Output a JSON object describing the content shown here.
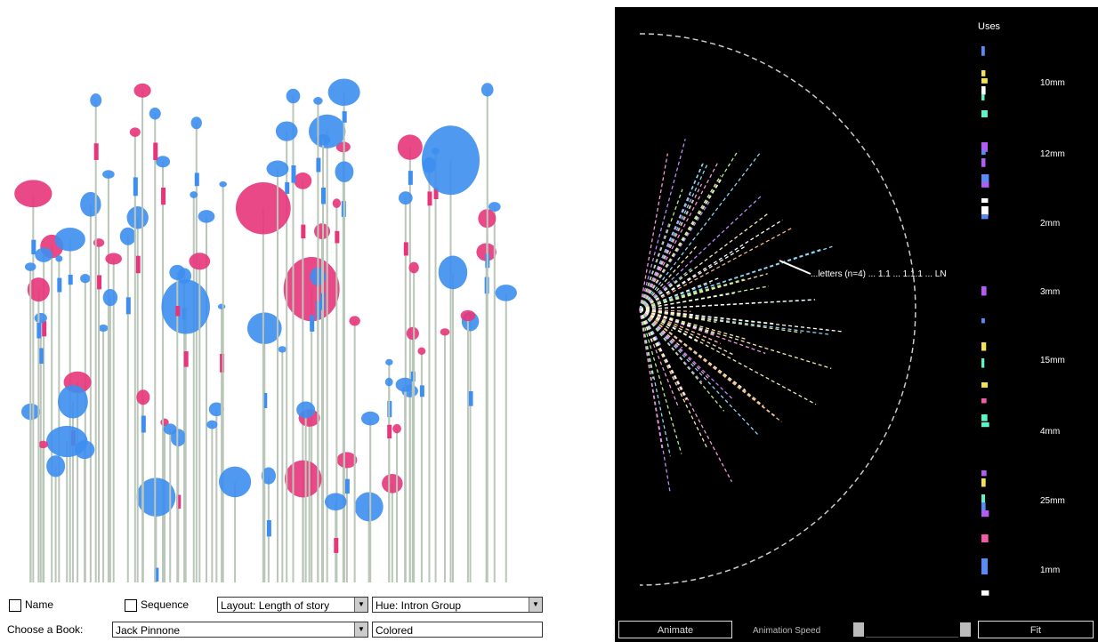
{
  "left": {
    "controls": {
      "cb1_label": "Name",
      "cb2_label": "Sequence",
      "layout_select": "Layout: Length of story",
      "hue_select": "Hue: Intron Group",
      "choose_label": "Choose a Book:",
      "book_select": "Jack Pinnone",
      "last_select": "Colored"
    }
  },
  "right": {
    "title": "Uses",
    "readout": "...letters (n=4) ... 1.1 ... 1.1.1 ... LN",
    "scale_labels": [
      "10mm",
      "12mm",
      "2mm",
      "3mm",
      "15mm",
      "4mm",
      "25mm",
      "1mm"
    ],
    "buttons": {
      "animate": "Animate",
      "speed_label": "Animation Speed",
      "fit": "Fit"
    }
  },
  "colors": {
    "blue": "#3d8ef0",
    "pink": "#e8357a",
    "stem": "#b9c6b8",
    "right_bg": "#000000"
  }
}
